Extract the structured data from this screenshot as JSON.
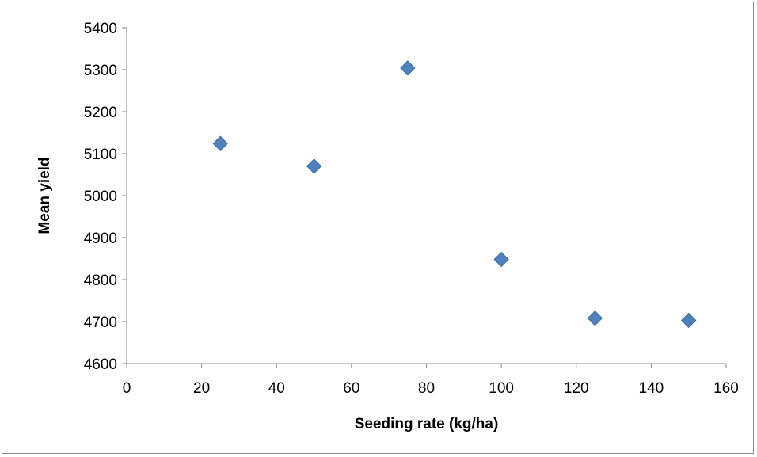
{
  "chart_data": {
    "type": "scatter",
    "title": "",
    "xlabel": "Seeding rate (kg/ha)",
    "ylabel": "Mean yield",
    "xlim": [
      0,
      160
    ],
    "ylim": [
      4600,
      5400
    ],
    "x_ticks": [
      "0",
      "20",
      "40",
      "60",
      "80",
      "100",
      "120",
      "140",
      "160"
    ],
    "y_ticks": [
      "4600",
      "4700",
      "4800",
      "4900",
      "5000",
      "5100",
      "5200",
      "5300",
      "5400"
    ],
    "grid": false,
    "legend": "none",
    "marker": "diamond",
    "marker_color": "#4f81bd",
    "series": [
      {
        "x": [
          25,
          50,
          75,
          100,
          125,
          150
        ],
        "y": [
          5124,
          5070,
          5304,
          4848,
          4708,
          4703
        ]
      }
    ]
  }
}
